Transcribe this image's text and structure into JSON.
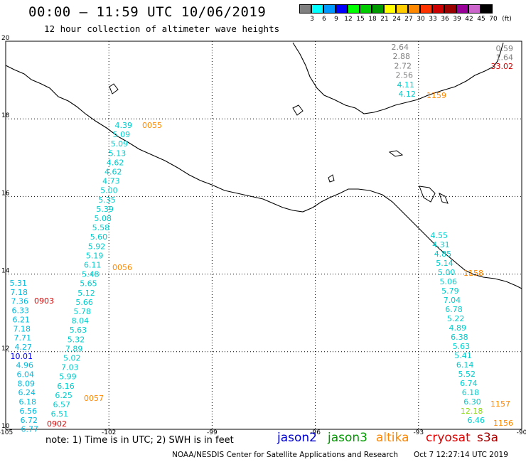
{
  "title": "00:00 — 11:59 UTC 10/06/2019",
  "subtitle": "12 hour collection of altimeter wave heights",
  "legend": {
    "unit": "(ft)",
    "bins": [
      {
        "label": "3",
        "color": "#808080"
      },
      {
        "label": "6",
        "color": "#00ffff"
      },
      {
        "label": "9",
        "color": "#0099ff"
      },
      {
        "label": "12",
        "color": "#0000ff"
      },
      {
        "label": "15",
        "color": "#00ff00"
      },
      {
        "label": "18",
        "color": "#00cc00"
      },
      {
        "label": "21",
        "color": "#009900"
      },
      {
        "label": "24",
        "color": "#ffff00"
      },
      {
        "label": "27",
        "color": "#ffcc00"
      },
      {
        "label": "30",
        "color": "#ff8800"
      },
      {
        "label": "33",
        "color": "#ff3300"
      },
      {
        "label": "36",
        "color": "#cc0000"
      },
      {
        "label": "39",
        "color": "#990000"
      },
      {
        "label": "42",
        "color": "#990099"
      },
      {
        "label": "45",
        "color": "#cc66cc"
      },
      {
        "label": "70",
        "color": "#000000"
      }
    ]
  },
  "axes": {
    "lon_ticks": [
      "-105",
      "-102",
      "-99",
      "-96",
      "-93",
      "-90"
    ],
    "lat_ticks": [
      "20",
      "18",
      "16",
      "14",
      "12",
      "10"
    ]
  },
  "tracks": [
    {
      "id": "track-west-jason3",
      "time": "0055",
      "time2": "0056",
      "time3": "0057",
      "time_color": "#ff8800",
      "values": [
        {
          "v": "4.39",
          "c": "#00cccc"
        },
        {
          "v": "5.09",
          "c": "#00cccc"
        },
        {
          "v": "5.09",
          "c": "#00cccc"
        },
        {
          "v": "5.13",
          "c": "#00cccc"
        },
        {
          "v": "4.62",
          "c": "#00cccc"
        },
        {
          "v": "4.62",
          "c": "#00cccc"
        },
        {
          "v": "4.73",
          "c": "#00cccc"
        },
        {
          "v": "5.00",
          "c": "#00cccc"
        },
        {
          "v": "5.35",
          "c": "#00cccc"
        },
        {
          "v": "5.39",
          "c": "#00cccc"
        },
        {
          "v": "5.08",
          "c": "#00cccc"
        },
        {
          "v": "5.58",
          "c": "#00cccc"
        },
        {
          "v": "5.60",
          "c": "#00cccc"
        },
        {
          "v": "5.92",
          "c": "#00cccc"
        },
        {
          "v": "5.19",
          "c": "#00cccc"
        },
        {
          "v": "6.11",
          "c": "#00cccc"
        },
        {
          "v": "5.48",
          "c": "#00cccc"
        },
        {
          "v": "5.65",
          "c": "#00cccc"
        },
        {
          "v": "5.12",
          "c": "#00cccc"
        },
        {
          "v": "5.66",
          "c": "#00cccc"
        },
        {
          "v": "5.78",
          "c": "#00cccc"
        },
        {
          "v": "8.04",
          "c": "#00cccc"
        },
        {
          "v": "5.63",
          "c": "#00cccc"
        },
        {
          "v": "5.32",
          "c": "#00cccc"
        },
        {
          "v": "7.89",
          "c": "#00cccc"
        },
        {
          "v": "5.02",
          "c": "#00cccc"
        },
        {
          "v": "7.03",
          "c": "#00cccc"
        },
        {
          "v": "5.99",
          "c": "#00cccc"
        },
        {
          "v": "6.16",
          "c": "#00cccc"
        },
        {
          "v": "6.25",
          "c": "#00cccc"
        },
        {
          "v": "6.57",
          "c": "#00cccc"
        },
        {
          "v": "6.51",
          "c": "#00cccc"
        }
      ]
    },
    {
      "id": "track-far-west-cryosat",
      "time": "0903",
      "time2": "0902",
      "time_color": "#dd0000",
      "values": [
        {
          "v": "5.31",
          "c": "#00bbdd"
        },
        {
          "v": "7.18",
          "c": "#00bbdd"
        },
        {
          "v": "7.36",
          "c": "#00bbdd"
        },
        {
          "v": "6.33",
          "c": "#00bbdd"
        },
        {
          "v": "6.21",
          "c": "#00bbdd"
        },
        {
          "v": "7.18",
          "c": "#00bbdd"
        },
        {
          "v": "7.71",
          "c": "#00bbdd"
        },
        {
          "v": "4.27",
          "c": "#00bbdd"
        },
        {
          "v": "10.01",
          "c": "#0000ee"
        },
        {
          "v": "4.96",
          "c": "#00bbdd"
        },
        {
          "v": "6.04",
          "c": "#00bbdd"
        },
        {
          "v": "8.09",
          "c": "#00bbdd"
        },
        {
          "v": "6.24",
          "c": "#00bbdd"
        },
        {
          "v": "6.18",
          "c": "#00bbdd"
        },
        {
          "v": "6.56",
          "c": "#00bbdd"
        },
        {
          "v": "6.72",
          "c": "#00bbdd"
        },
        {
          "v": "6.77",
          "c": "#00bbdd"
        }
      ]
    },
    {
      "id": "track-east",
      "time": "1158",
      "time2": "1157",
      "time3": "1156",
      "time_color": "#ff8800",
      "values": [
        {
          "v": "4.55",
          "c": "#00cccc"
        },
        {
          "v": "4.31",
          "c": "#00cccc"
        },
        {
          "v": "4.85",
          "c": "#00cccc"
        },
        {
          "v": "5.14",
          "c": "#00cccc"
        },
        {
          "v": "5.00",
          "c": "#00cccc"
        },
        {
          "v": "5.06",
          "c": "#00cccc"
        },
        {
          "v": "5.79",
          "c": "#00cccc"
        },
        {
          "v": "7.04",
          "c": "#00cccc"
        },
        {
          "v": "6.78",
          "c": "#00cccc"
        },
        {
          "v": "5.22",
          "c": "#00cccc"
        },
        {
          "v": "4.89",
          "c": "#00cccc"
        },
        {
          "v": "6.38",
          "c": "#00cccc"
        },
        {
          "v": "5.63",
          "c": "#00cccc"
        },
        {
          "v": "5.41",
          "c": "#00cccc"
        },
        {
          "v": "6.14",
          "c": "#00cccc"
        },
        {
          "v": "5.52",
          "c": "#00cccc"
        },
        {
          "v": "6.74",
          "c": "#00cccc"
        },
        {
          "v": "6.18",
          "c": "#00cccc"
        },
        {
          "v": "6.30",
          "c": "#00cccc"
        },
        {
          "v": "12.18",
          "c": "#88dd00"
        },
        {
          "v": "6.46",
          "c": "#00cccc"
        }
      ]
    },
    {
      "id": "track-northeast",
      "time": "1159",
      "time_color": "#ff8800",
      "values": [
        {
          "v": "2.64",
          "c": "#808080"
        },
        {
          "v": "2.88",
          "c": "#808080"
        },
        {
          "v": "2.72",
          "c": "#808080"
        },
        {
          "v": "2.56",
          "c": "#808080"
        },
        {
          "v": "4.11",
          "c": "#00cccc"
        },
        {
          "v": "4.12",
          "c": "#00cccc"
        }
      ]
    },
    {
      "id": "track-top-right",
      "values": [
        {
          "v": "0.59",
          "c": "#808080"
        },
        {
          "v": "1.64",
          "c": "#808080"
        },
        {
          "v": "33.02",
          "c": "#cc0000"
        }
      ]
    }
  ],
  "footer": {
    "note": "note: 1) Time is in UTC; 2) SWH is in feet",
    "satellites": [
      {
        "name": "jason2",
        "color": "#0000cc"
      },
      {
        "name": "jason3",
        "color": "#009900"
      },
      {
        "name": "altika",
        "color": "#ff8800"
      },
      {
        "name": "cryosat",
        "color": "#dd0000"
      },
      {
        "name": "s3a",
        "color": "#aa0000"
      }
    ],
    "credit": "NOAA/NESDIS Center for Satellite Applications and Research",
    "timestamp": "Oct  7 12:27:14 UTC 2019"
  }
}
